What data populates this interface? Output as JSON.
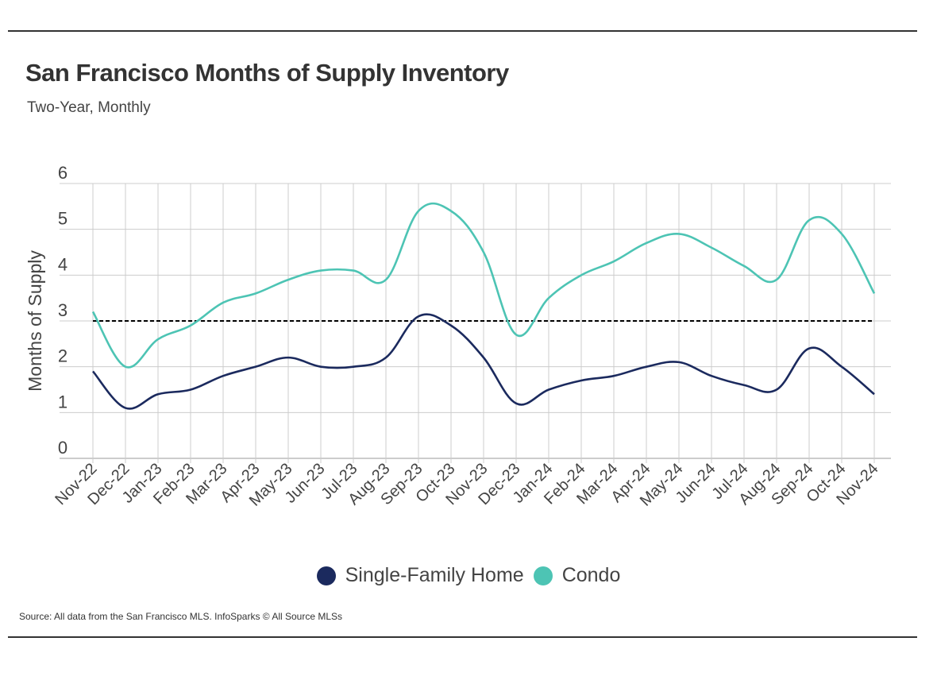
{
  "header": {
    "title": "San Francisco Months of Supply Inventory",
    "subtitle": "Two-Year, Monthly"
  },
  "footer": {
    "source": "Source:  All data from the San Francisco MLS. InfoSparks © All Source MLSs"
  },
  "colors": {
    "single_family": "#1b2a5e",
    "condo": "#4dc4b4",
    "reference_line": "#000000",
    "grid": "#cccccc",
    "text": "#444444"
  },
  "chart_data": {
    "type": "line",
    "ylabel": "Months of Supply",
    "xlabel": "",
    "ylim": [
      0,
      6
    ],
    "yticks": [
      0,
      1,
      2,
      3,
      4,
      5,
      6
    ],
    "grid": true,
    "legend_position": "bottom",
    "categories": [
      "Nov-22",
      "Dec-22",
      "Jan-23",
      "Feb-23",
      "Mar-23",
      "Apr-23",
      "May-23",
      "Jun-23",
      "Jul-23",
      "Aug-23",
      "Sep-23",
      "Oct-23",
      "Nov-23",
      "Dec-23",
      "Jan-24",
      "Feb-24",
      "Mar-24",
      "Apr-24",
      "May-24",
      "Jun-24",
      "Jul-24",
      "Aug-24",
      "Sep-24",
      "Oct-24",
      "Nov-24"
    ],
    "series": [
      {
        "name": "Single-Family Home",
        "color": "#1b2a5e",
        "values": [
          1.9,
          1.1,
          1.4,
          1.5,
          1.8,
          2.0,
          2.2,
          2.0,
          2.0,
          2.2,
          3.1,
          2.9,
          2.2,
          1.2,
          1.5,
          1.7,
          1.8,
          2.0,
          2.1,
          1.8,
          1.6,
          1.5,
          2.4,
          2.0,
          1.4
        ]
      },
      {
        "name": "Condo",
        "color": "#4dc4b4",
        "values": [
          3.2,
          2.0,
          2.6,
          2.9,
          3.4,
          3.6,
          3.9,
          4.1,
          4.1,
          3.9,
          5.4,
          5.4,
          4.5,
          2.7,
          3.5,
          4.0,
          4.3,
          4.7,
          4.9,
          4.6,
          4.2,
          3.9,
          5.2,
          4.9,
          3.6
        ]
      }
    ],
    "reference_line": {
      "y": 3.0,
      "style": "dashed"
    }
  }
}
